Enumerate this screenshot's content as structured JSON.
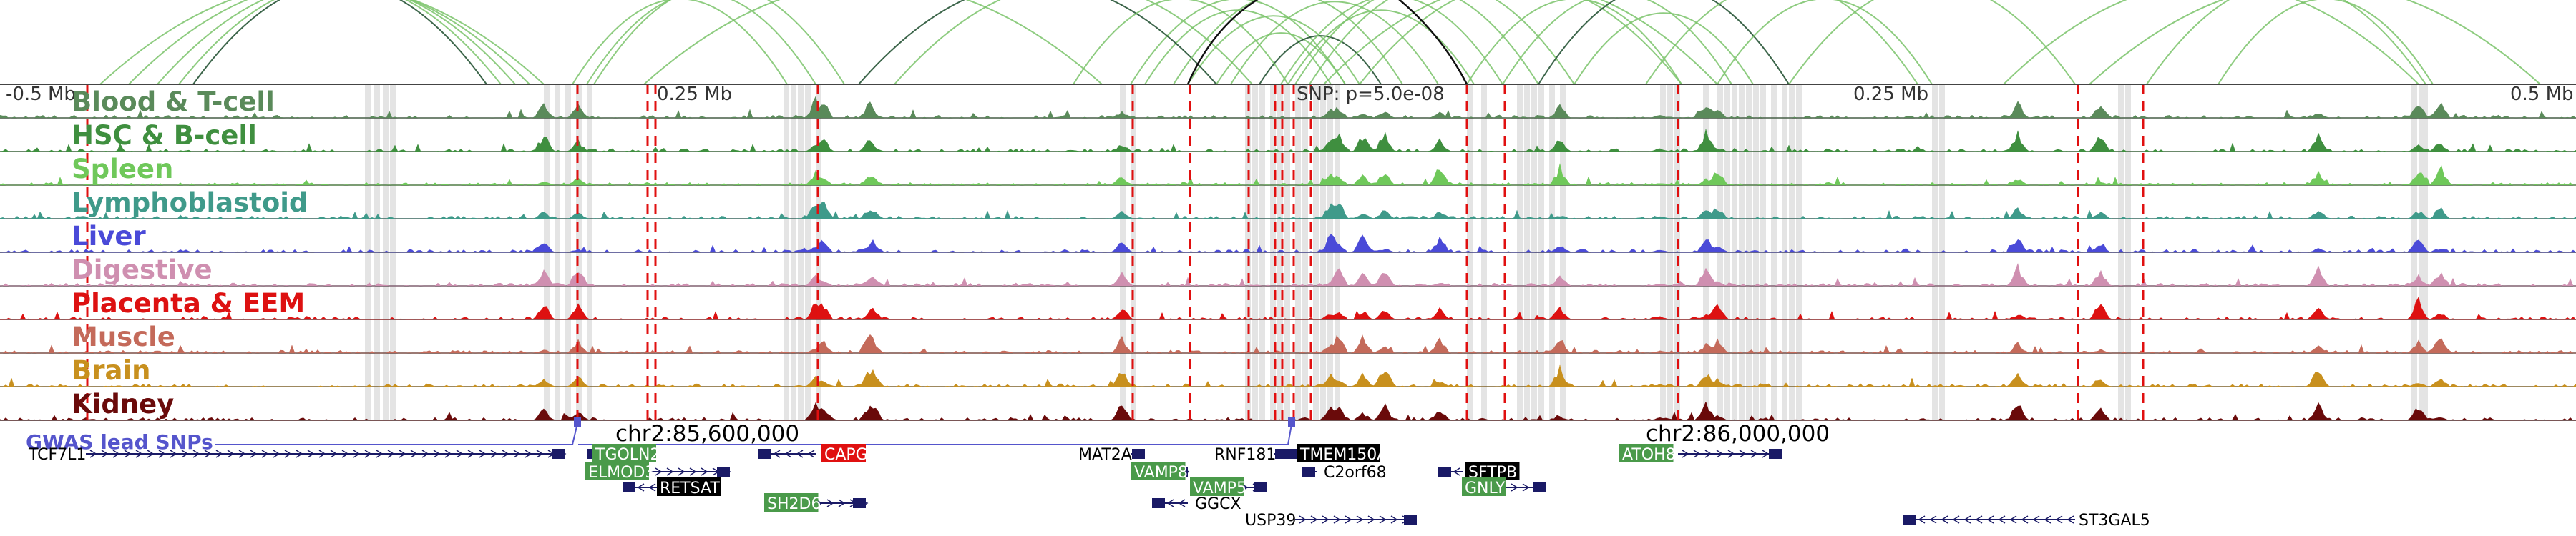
{
  "axis": {
    "left_label": "-0.5 Mb",
    "left_mid_label": "0.25 Mb",
    "center_label": "SNP: p=5.0e-08",
    "right_mid_label": "0.25 Mb",
    "right_label": "0.5 Mb"
  },
  "tracks": [
    {
      "label": "Blood & T-cell",
      "color": "#5a8a5a"
    },
    {
      "label": "HSC & B-cell",
      "color": "#3f8f3f"
    },
    {
      "label": "Spleen",
      "color": "#6fc85a"
    },
    {
      "label": "Lymphoblastoid",
      "color": "#3f9a8a"
    },
    {
      "label": "Liver",
      "color": "#4a4ad8"
    },
    {
      "label": "Digestive",
      "color": "#cf8fb0"
    },
    {
      "label": "Placenta & EEM",
      "color": "#dd1111"
    },
    {
      "label": "Muscle",
      "color": "#c46a5a"
    },
    {
      "label": "Brain",
      "color": "#c8901e"
    },
    {
      "label": "Kidney",
      "color": "#6a0a0a"
    }
  ],
  "gwas": {
    "label": "GWAS lead SNPs",
    "color": "#5555cc"
  },
  "coordinates": {
    "left": "chr2:85,600,000",
    "right": "chr2:86,000,000"
  },
  "genes": [
    {
      "name": "TCF7L1",
      "style": "plain"
    },
    {
      "name": "TGOLN2",
      "style": "green"
    },
    {
      "name": "ELMOD3",
      "style": "green"
    },
    {
      "name": "RETSAT",
      "style": "black"
    },
    {
      "name": "SH2D6",
      "style": "green"
    },
    {
      "name": "CAPG",
      "style": "red"
    },
    {
      "name": "MAT2A",
      "style": "plain"
    },
    {
      "name": "VAMP8",
      "style": "green"
    },
    {
      "name": "VAMP5",
      "style": "green"
    },
    {
      "name": "GGCX",
      "style": "plain"
    },
    {
      "name": "RNF181",
      "style": "plain"
    },
    {
      "name": "TMEM150A",
      "style": "black"
    },
    {
      "name": "C2orf68",
      "style": "plain"
    },
    {
      "name": "USP39",
      "style": "plain"
    },
    {
      "name": "SFTPB",
      "style": "black"
    },
    {
      "name": "GNLY",
      "style": "green"
    },
    {
      "name": "ATOH8",
      "style": "green"
    },
    {
      "name": "ST3GAL5",
      "style": "plain"
    }
  ],
  "colors": {
    "highlight": "#e4e4e4",
    "snp_line": "#e01010",
    "gene_body": "#1a1a66",
    "arc": "#7ac36a"
  }
}
